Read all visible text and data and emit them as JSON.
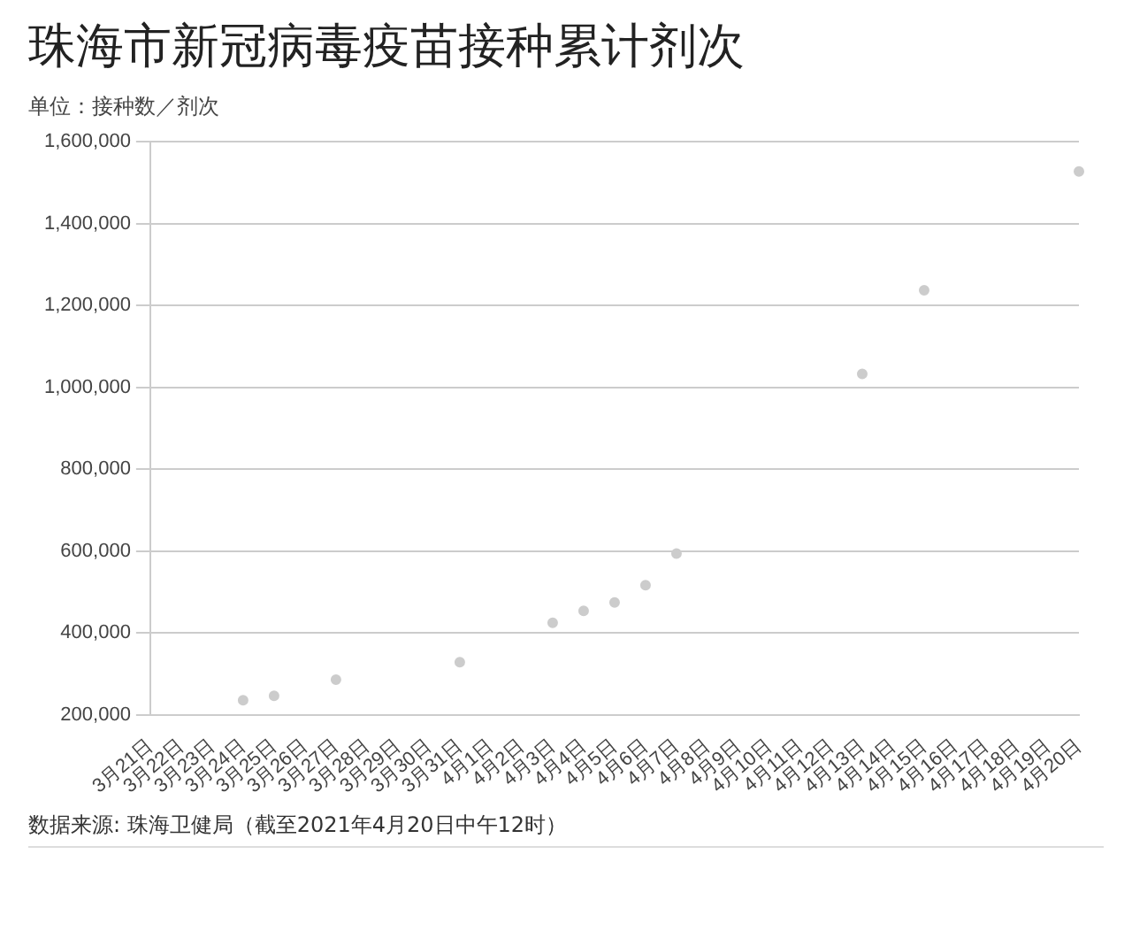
{
  "chart_data": {
    "type": "scatter",
    "title": "珠海市新冠病毒疫苗接种累计剂次",
    "subtitle": "单位：接种数／剂次",
    "categories": [
      "3月21日",
      "3月22日",
      "3月23日",
      "3月24日",
      "3月25日",
      "3月26日",
      "3月27日",
      "3月28日",
      "3月29日",
      "3月30日",
      "3月31日",
      "4月1日",
      "4月2日",
      "4月3日",
      "4月4日",
      "4月5日",
      "4月6日",
      "4月7日",
      "4月8日",
      "4月9日",
      "4月10日",
      "4月11日",
      "4月12日",
      "4月13日",
      "4月14日",
      "4月15日",
      "4月16日",
      "4月17日",
      "4月18日",
      "4月19日",
      "4月20日"
    ],
    "series": [
      {
        "color": "#cccccc",
        "values": [
          null,
          null,
          null,
          236000,
          247000,
          null,
          286000,
          null,
          null,
          null,
          329000,
          null,
          null,
          425000,
          454000,
          475000,
          517000,
          594000,
          null,
          null,
          null,
          null,
          null,
          1033000,
          null,
          1237000,
          null,
          null,
          null,
          null,
          1527000
        ]
      }
    ],
    "ylim": [
      200000,
      1600000
    ],
    "yticks": [
      {
        "value": 200000,
        "label": "200,000"
      },
      {
        "value": 400000,
        "label": "400,000"
      },
      {
        "value": 600000,
        "label": "600,000"
      },
      {
        "value": 800000,
        "label": "800,000"
      },
      {
        "value": 1000000,
        "label": "1,000,000"
      },
      {
        "value": 1200000,
        "label": "1,200,000"
      },
      {
        "value": 1400000,
        "label": "1,400,000"
      },
      {
        "value": 1600000,
        "label": "1,600,000"
      }
    ],
    "grid": "y",
    "marker": "circle",
    "legend": false,
    "annotations": [
      "数据来源: 珠海卫健局（截至2021年4月20日中午12时）"
    ]
  }
}
